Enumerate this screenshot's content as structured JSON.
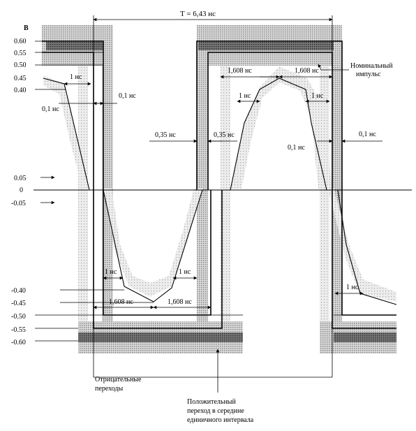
{
  "diagram": {
    "y_axis_unit": "В",
    "y_ticks": [
      "0.60",
      "0.55",
      "0.50",
      "0.45",
      "0.40",
      "0.05",
      "0",
      "-0.05",
      "-0.40",
      "-0.45",
      "-0.50",
      "-0.55",
      "-0.60"
    ],
    "period_label": "T = 6,43 нс",
    "dims": {
      "t1ns": "1 нс",
      "t01ns": "0,1 нс",
      "t035ns": "0,35 нс",
      "t1608ns": "1,608 нс"
    },
    "annotations": {
      "nominal_pulse_line1": "Номинальный",
      "nominal_pulse_line2": "импульс",
      "negative_transitions_line1": "Отрицательные",
      "negative_transitions_line2": "переходы",
      "positive_transition_line1": "Положительный",
      "positive_transition_line2": "переход в середине",
      "positive_transition_line3": "единичного интервала"
    },
    "colors": {
      "ink": "#000000",
      "shade": "#bdbdbd",
      "dark_bar": "#555555"
    }
  }
}
